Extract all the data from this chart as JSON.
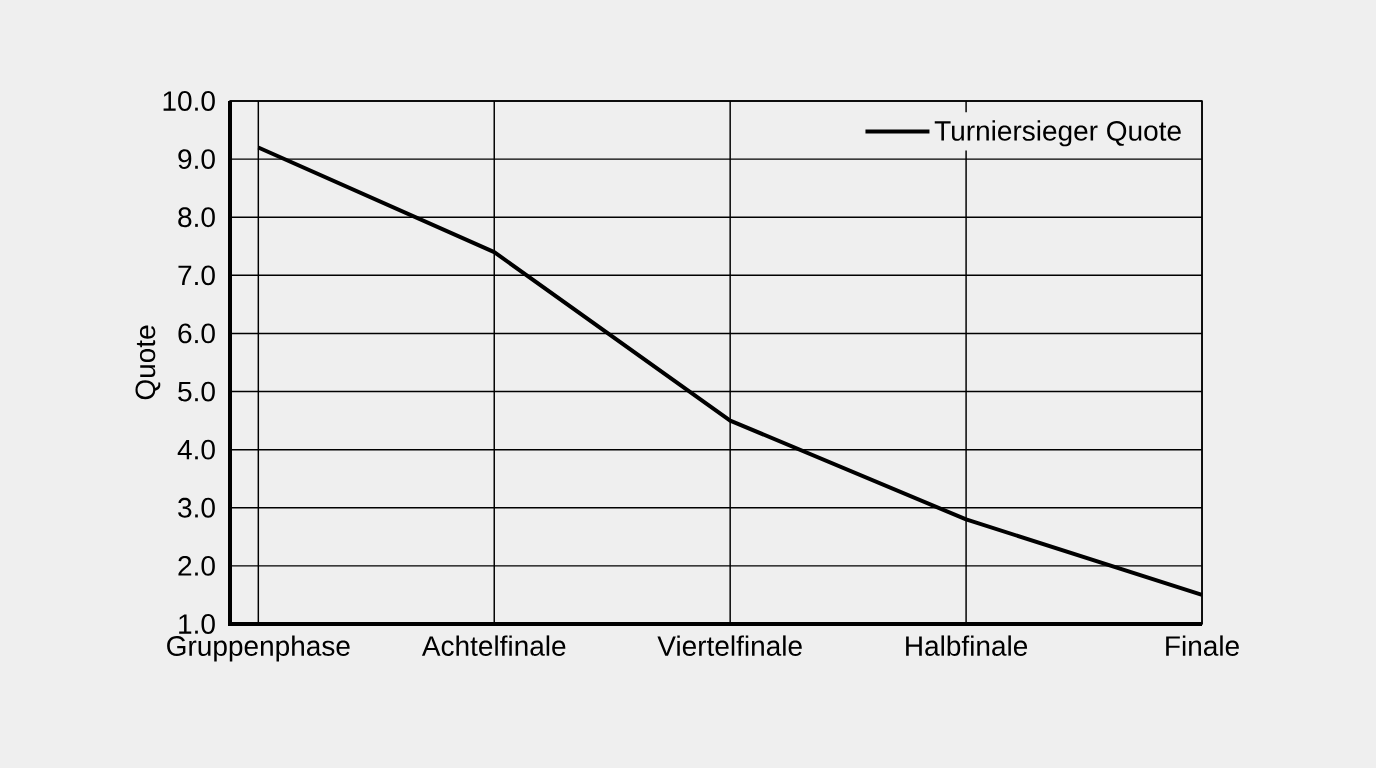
{
  "chart_data": {
    "type": "line",
    "ylabel": "Quote",
    "categories": [
      "Gruppenphase",
      "Achtelfinale",
      "Viertelfinale",
      "Halbfinale",
      "Finale"
    ],
    "series": [
      {
        "name": "Turniersieger Quote",
        "color": "#000000",
        "values": [
          9.2,
          7.4,
          4.5,
          2.8,
          1.5
        ]
      }
    ],
    "ylim": [
      1,
      10
    ],
    "yticks": [
      {
        "value": 1,
        "label": "1.0"
      },
      {
        "value": 2,
        "label": "2.0"
      },
      {
        "value": 3,
        "label": "3.0"
      },
      {
        "value": 4,
        "label": "4.0"
      },
      {
        "value": 5,
        "label": "5.0"
      },
      {
        "value": 6,
        "label": "6.0"
      },
      {
        "value": 7,
        "label": "7.0"
      },
      {
        "value": 8,
        "label": "8.0"
      },
      {
        "value": 9,
        "label": "9.0"
      },
      {
        "value": 10,
        "label": "10.0"
      }
    ],
    "grid": true,
    "legend": "top right"
  }
}
